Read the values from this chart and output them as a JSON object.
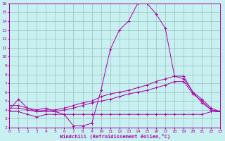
{
  "xlabel": "Windchill (Refroidissement éolien,°C)",
  "bg_color": "#c8f0f0",
  "grid_color": "#a0c8c8",
  "line_color": "#aa00aa",
  "x_min": 0,
  "x_max": 23,
  "y_min": 2,
  "y_max": 16,
  "line1_y": [
    4.0,
    5.2,
    4.2,
    4.0,
    4.2,
    3.8,
    3.5,
    2.2,
    2.2,
    2.5,
    6.2,
    10.8,
    13.0,
    14.0,
    16.0,
    16.0,
    14.8,
    13.2,
    7.8,
    7.5,
    6.0,
    4.8,
    4.0,
    3.8
  ],
  "line2_y": [
    4.5,
    4.5,
    4.2,
    3.8,
    4.0,
    4.0,
    4.2,
    4.5,
    4.8,
    5.0,
    5.5,
    5.8,
    6.0,
    6.2,
    6.5,
    6.8,
    7.2,
    7.5,
    7.8,
    7.8,
    6.0,
    5.2,
    4.2,
    3.8
  ],
  "line3_y": [
    4.2,
    4.2,
    4.0,
    3.8,
    3.8,
    3.8,
    4.0,
    4.2,
    4.5,
    4.8,
    5.0,
    5.2,
    5.5,
    5.8,
    6.0,
    6.2,
    6.5,
    6.8,
    7.2,
    7.2,
    5.8,
    5.0,
    4.0,
    3.8
  ],
  "line4_y": [
    3.8,
    3.8,
    3.5,
    3.2,
    3.5,
    3.5,
    3.5,
    3.5,
    3.5,
    3.5,
    3.5,
    3.5,
    3.5,
    3.5,
    3.5,
    3.5,
    3.5,
    3.5,
    3.5,
    3.5,
    3.5,
    3.5,
    3.8,
    3.8
  ]
}
